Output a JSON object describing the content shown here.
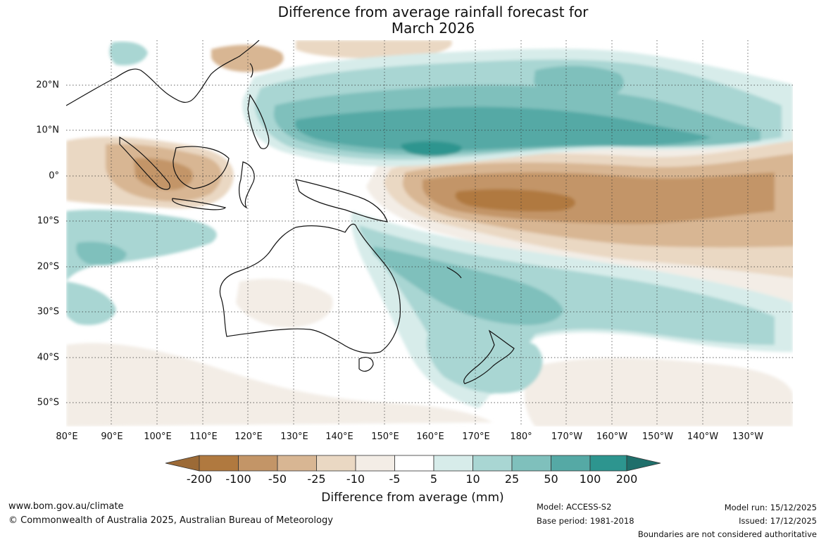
{
  "title": {
    "line1": "Difference from average rainfall forecast for",
    "line2": "March 2026"
  },
  "map": {
    "longitude_labels": [
      "80°E",
      "90°E",
      "100°E",
      "110°E",
      "120°E",
      "130°E",
      "140°E",
      "150°E",
      "160°E",
      "170°E",
      "180°",
      "170°W",
      "160°W",
      "150°W",
      "140°W",
      "130°W"
    ],
    "latitude_labels": [
      "20°N",
      "10°N",
      "0°",
      "10°S",
      "20°S",
      "30°S",
      "40°S",
      "50°S"
    ]
  },
  "colorbar": {
    "title": "Difference from average (mm)",
    "ticks": [
      "-200",
      "-100",
      "-50",
      "-25",
      "-10",
      "-5",
      "5",
      "10",
      "25",
      "50",
      "100",
      "200"
    ],
    "colors": [
      "#9c6a36",
      "#b0793f",
      "#c39567",
      "#d8b693",
      "#ead8c3",
      "#f3ede6",
      "#ffffff",
      "#d7ecea",
      "#a9d6d3",
      "#7fc0bc",
      "#55a9a5",
      "#2d958f",
      "#1f6f6b"
    ]
  },
  "footer": {
    "url": "www.bom.gov.au/climate",
    "copyright": "© Commonwealth of Australia 2025, Australian Bureau of Meteorology",
    "model": "Model: ACCESS-S2",
    "base_period": "Base period: 1981-2018",
    "model_run": "Model run: 15/12/2025",
    "issued": "Issued: 17/12/2025",
    "disclaimer": "Boundaries are not considered authoritative"
  }
}
